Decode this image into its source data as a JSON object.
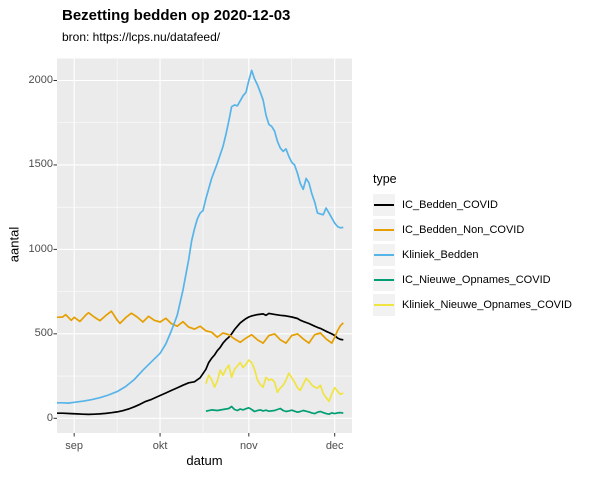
{
  "title": "Bezetting bedden op 2020-12-03",
  "subtitle": "bron: https://lcps.nu/datafeed/",
  "x_axis": {
    "label": "datum",
    "ticks": [
      "sep",
      "okt",
      "nov",
      "dec"
    ]
  },
  "y_axis": {
    "label": "aantal",
    "ticks": [
      "0",
      "500",
      "1000",
      "1500",
      "2000"
    ]
  },
  "legend": {
    "title": "type",
    "items": [
      "IC_Bedden_COVID",
      "IC_Bedden_Non_COVID",
      "Kliniek_Bedden",
      "IC_Nieuwe_Opnames_COVID",
      "Kliniek_Nieuwe_Opnames_COVID"
    ]
  },
  "colors": {
    "panel_bg": "#EBEBEB",
    "grid": "#FFFFFF",
    "legend_key_bg": "#F2F2F2",
    "axis_text": "#4D4D4D",
    "tick_mark": "#333333"
  },
  "chart_data": {
    "type": "line",
    "title": "Bezetting bedden op 2020-12-03",
    "subtitle": "bron: https://lcps.nu/datafeed/",
    "xlabel": "datum",
    "ylabel": "aantal",
    "x_unit": "days since 2020-08-26",
    "x_domain_days": [
      0,
      100
    ],
    "x_tick_days": [
      6,
      36,
      67,
      97
    ],
    "x_tick_labels": [
      "sep",
      "okt",
      "nov",
      "dec"
    ],
    "x_minor_days": [
      21,
      51,
      82
    ],
    "y_ticks": [
      0,
      500,
      1000,
      1500,
      2000
    ],
    "y_minor": [
      250,
      750,
      1250,
      1750
    ],
    "ylim": [
      -90,
      2130
    ],
    "grid": true,
    "legend_position": "right",
    "series": [
      {
        "name": "IC_Bedden_COVID",
        "color": "#000000",
        "points": [
          [
            0,
            30
          ],
          [
            2,
            30
          ],
          [
            5,
            28
          ],
          [
            7,
            26
          ],
          [
            9,
            24
          ],
          [
            11,
            23
          ],
          [
            13,
            24
          ],
          [
            15,
            26
          ],
          [
            17,
            29
          ],
          [
            19,
            33
          ],
          [
            21,
            38
          ],
          [
            23,
            45
          ],
          [
            25,
            55
          ],
          [
            27,
            68
          ],
          [
            29,
            83
          ],
          [
            31,
            100
          ],
          [
            33,
            112
          ],
          [
            36,
            135
          ],
          [
            38,
            150
          ],
          [
            40,
            165
          ],
          [
            42,
            180
          ],
          [
            44,
            196
          ],
          [
            46,
            210
          ],
          [
            48,
            216
          ],
          [
            50,
            240
          ],
          [
            52,
            290
          ],
          [
            53,
            330
          ],
          [
            54,
            355
          ],
          [
            55,
            375
          ],
          [
            56,
            400
          ],
          [
            57,
            420
          ],
          [
            58,
            445
          ],
          [
            59,
            465
          ],
          [
            60,
            480
          ],
          [
            61,
            500
          ],
          [
            62,
            525
          ],
          [
            63,
            545
          ],
          [
            64,
            565
          ],
          [
            65,
            578
          ],
          [
            66,
            590
          ],
          [
            67,
            600
          ],
          [
            68,
            606
          ],
          [
            70,
            614
          ],
          [
            72,
            618
          ],
          [
            73,
            610
          ],
          [
            74,
            621
          ],
          [
            76,
            615
          ],
          [
            78,
            610
          ],
          [
            80,
            606
          ],
          [
            82,
            600
          ],
          [
            84,
            591
          ],
          [
            85,
            581
          ],
          [
            86,
            574
          ],
          [
            88,
            561
          ],
          [
            90,
            545
          ],
          [
            91,
            538
          ],
          [
            92,
            532
          ],
          [
            94,
            515
          ],
          [
            96,
            500
          ],
          [
            97,
            490
          ],
          [
            98,
            475
          ],
          [
            99,
            467
          ],
          [
            100,
            465
          ]
        ]
      },
      {
        "name": "IC_Bedden_Non_COVID",
        "color": "#E69F00",
        "points": [
          [
            0,
            598
          ],
          [
            2,
            600
          ],
          [
            3,
            614
          ],
          [
            5,
            580
          ],
          [
            6,
            598
          ],
          [
            8,
            574
          ],
          [
            10,
            610
          ],
          [
            11,
            625
          ],
          [
            13,
            600
          ],
          [
            15,
            578
          ],
          [
            17,
            608
          ],
          [
            19,
            634
          ],
          [
            21,
            582
          ],
          [
            22,
            562
          ],
          [
            24,
            596
          ],
          [
            26,
            622
          ],
          [
            28,
            600
          ],
          [
            30,
            570
          ],
          [
            32,
            604
          ],
          [
            34,
            580
          ],
          [
            36,
            570
          ],
          [
            38,
            592
          ],
          [
            40,
            560
          ],
          [
            42,
            545
          ],
          [
            44,
            572
          ],
          [
            46,
            540
          ],
          [
            48,
            528
          ],
          [
            50,
            545
          ],
          [
            52,
            518
          ],
          [
            54,
            510
          ],
          [
            56,
            480
          ],
          [
            58,
            505
          ],
          [
            60,
            495
          ],
          [
            62,
            470
          ],
          [
            64,
            450
          ],
          [
            66,
            475
          ],
          [
            68,
            495
          ],
          [
            70,
            465
          ],
          [
            72,
            445
          ],
          [
            74,
            490
          ],
          [
            76,
            500
          ],
          [
            78,
            465
          ],
          [
            80,
            445
          ],
          [
            82,
            490
          ],
          [
            84,
            500
          ],
          [
            86,
            470
          ],
          [
            88,
            445
          ],
          [
            90,
            495
          ],
          [
            92,
            505
          ],
          [
            94,
            470
          ],
          [
            96,
            445
          ],
          [
            97,
            480
          ],
          [
            98,
            520
          ],
          [
            99,
            548
          ],
          [
            100,
            565
          ]
        ]
      },
      {
        "name": "Kliniek_Bedden",
        "color": "#56B4E9",
        "points": [
          [
            0,
            92
          ],
          [
            2,
            92
          ],
          [
            4,
            90
          ],
          [
            6,
            95
          ],
          [
            9,
            101
          ],
          [
            12,
            110
          ],
          [
            15,
            122
          ],
          [
            18,
            138
          ],
          [
            21,
            158
          ],
          [
            24,
            188
          ],
          [
            27,
            230
          ],
          [
            30,
            285
          ],
          [
            33,
            335
          ],
          [
            36,
            385
          ],
          [
            38,
            440
          ],
          [
            40,
            520
          ],
          [
            42,
            610
          ],
          [
            44,
            760
          ],
          [
            46,
            940
          ],
          [
            47,
            1050
          ],
          [
            48,
            1120
          ],
          [
            49,
            1180
          ],
          [
            50,
            1215
          ],
          [
            51,
            1230
          ],
          [
            52,
            1300
          ],
          [
            54,
            1420
          ],
          [
            56,
            1510
          ],
          [
            58,
            1610
          ],
          [
            59,
            1680
          ],
          [
            60,
            1760
          ],
          [
            61,
            1845
          ],
          [
            62,
            1855
          ],
          [
            63,
            1850
          ],
          [
            64,
            1880
          ],
          [
            65,
            1910
          ],
          [
            66,
            1930
          ],
          [
            67,
            2000
          ],
          [
            68,
            2060
          ],
          [
            69,
            2010
          ],
          [
            70,
            1975
          ],
          [
            71,
            1930
          ],
          [
            72,
            1885
          ],
          [
            73,
            1795
          ],
          [
            74,
            1740
          ],
          [
            75,
            1728
          ],
          [
            76,
            1700
          ],
          [
            77,
            1640
          ],
          [
            78,
            1600
          ],
          [
            79,
            1580
          ],
          [
            80,
            1595
          ],
          [
            81,
            1550
          ],
          [
            82,
            1515
          ],
          [
            83,
            1500
          ],
          [
            84,
            1450
          ],
          [
            85,
            1390
          ],
          [
            86,
            1355
          ],
          [
            87,
            1420
          ],
          [
            88,
            1395
          ],
          [
            89,
            1330
          ],
          [
            90,
            1280
          ],
          [
            91,
            1215
          ],
          [
            93,
            1205
          ],
          [
            94,
            1245
          ],
          [
            95,
            1215
          ],
          [
            97,
            1155
          ],
          [
            98,
            1135
          ],
          [
            99,
            1128
          ],
          [
            100,
            1130
          ]
        ]
      },
      {
        "name": "IC_Nieuwe_Opnames_COVID",
        "color": "#009E73",
        "points": [
          [
            52,
            42
          ],
          [
            54,
            50
          ],
          [
            56,
            46
          ],
          [
            58,
            52
          ],
          [
            60,
            58
          ],
          [
            61,
            70
          ],
          [
            62,
            52
          ],
          [
            63,
            46
          ],
          [
            64,
            55
          ],
          [
            65,
            50
          ],
          [
            66,
            57
          ],
          [
            67,
            62
          ],
          [
            68,
            52
          ],
          [
            69,
            40
          ],
          [
            70,
            46
          ],
          [
            71,
            50
          ],
          [
            72,
            44
          ],
          [
            73,
            48
          ],
          [
            74,
            42
          ],
          [
            76,
            46
          ],
          [
            77,
            52
          ],
          [
            78,
            58
          ],
          [
            79,
            46
          ],
          [
            80,
            40
          ],
          [
            81,
            44
          ],
          [
            82,
            48
          ],
          [
            83,
            42
          ],
          [
            84,
            36
          ],
          [
            85,
            40
          ],
          [
            86,
            46
          ],
          [
            87,
            42
          ],
          [
            88,
            38
          ],
          [
            89,
            32
          ],
          [
            90,
            28
          ],
          [
            91,
            36
          ],
          [
            92,
            40
          ],
          [
            93,
            34
          ],
          [
            94,
            28
          ],
          [
            95,
            24
          ],
          [
            96,
            32
          ],
          [
            97,
            28
          ],
          [
            98,
            32
          ],
          [
            99,
            34
          ],
          [
            100,
            30
          ]
        ]
      },
      {
        "name": "Kliniek_Nieuwe_Opnames_COVID",
        "color": "#F0E442",
        "points": [
          [
            52,
            205
          ],
          [
            53,
            255
          ],
          [
            54,
            230
          ],
          [
            55,
            184
          ],
          [
            56,
            220
          ],
          [
            57,
            285
          ],
          [
            58,
            255
          ],
          [
            59,
            290
          ],
          [
            60,
            315
          ],
          [
            61,
            243
          ],
          [
            62,
            290
          ],
          [
            63,
            310
          ],
          [
            64,
            330
          ],
          [
            65,
            300
          ],
          [
            66,
            320
          ],
          [
            67,
            345
          ],
          [
            68,
            330
          ],
          [
            69,
            290
          ],
          [
            70,
            228
          ],
          [
            71,
            200
          ],
          [
            72,
            184
          ],
          [
            73,
            243
          ],
          [
            74,
            225
          ],
          [
            75,
            232
          ],
          [
            76,
            214
          ],
          [
            77,
            154
          ],
          [
            78,
            180
          ],
          [
            79,
            196
          ],
          [
            80,
            226
          ],
          [
            81,
            267
          ],
          [
            82,
            240
          ],
          [
            83,
            214
          ],
          [
            84,
            180
          ],
          [
            85,
            166
          ],
          [
            86,
            200
          ],
          [
            87,
            237
          ],
          [
            88,
            220
          ],
          [
            89,
            198
          ],
          [
            90,
            184
          ],
          [
            91,
            178
          ],
          [
            92,
            196
          ],
          [
            93,
            148
          ],
          [
            94,
            122
          ],
          [
            95,
            100
          ],
          [
            96,
            145
          ],
          [
            97,
            182
          ],
          [
            98,
            160
          ],
          [
            99,
            142
          ],
          [
            100,
            150
          ]
        ]
      }
    ]
  }
}
